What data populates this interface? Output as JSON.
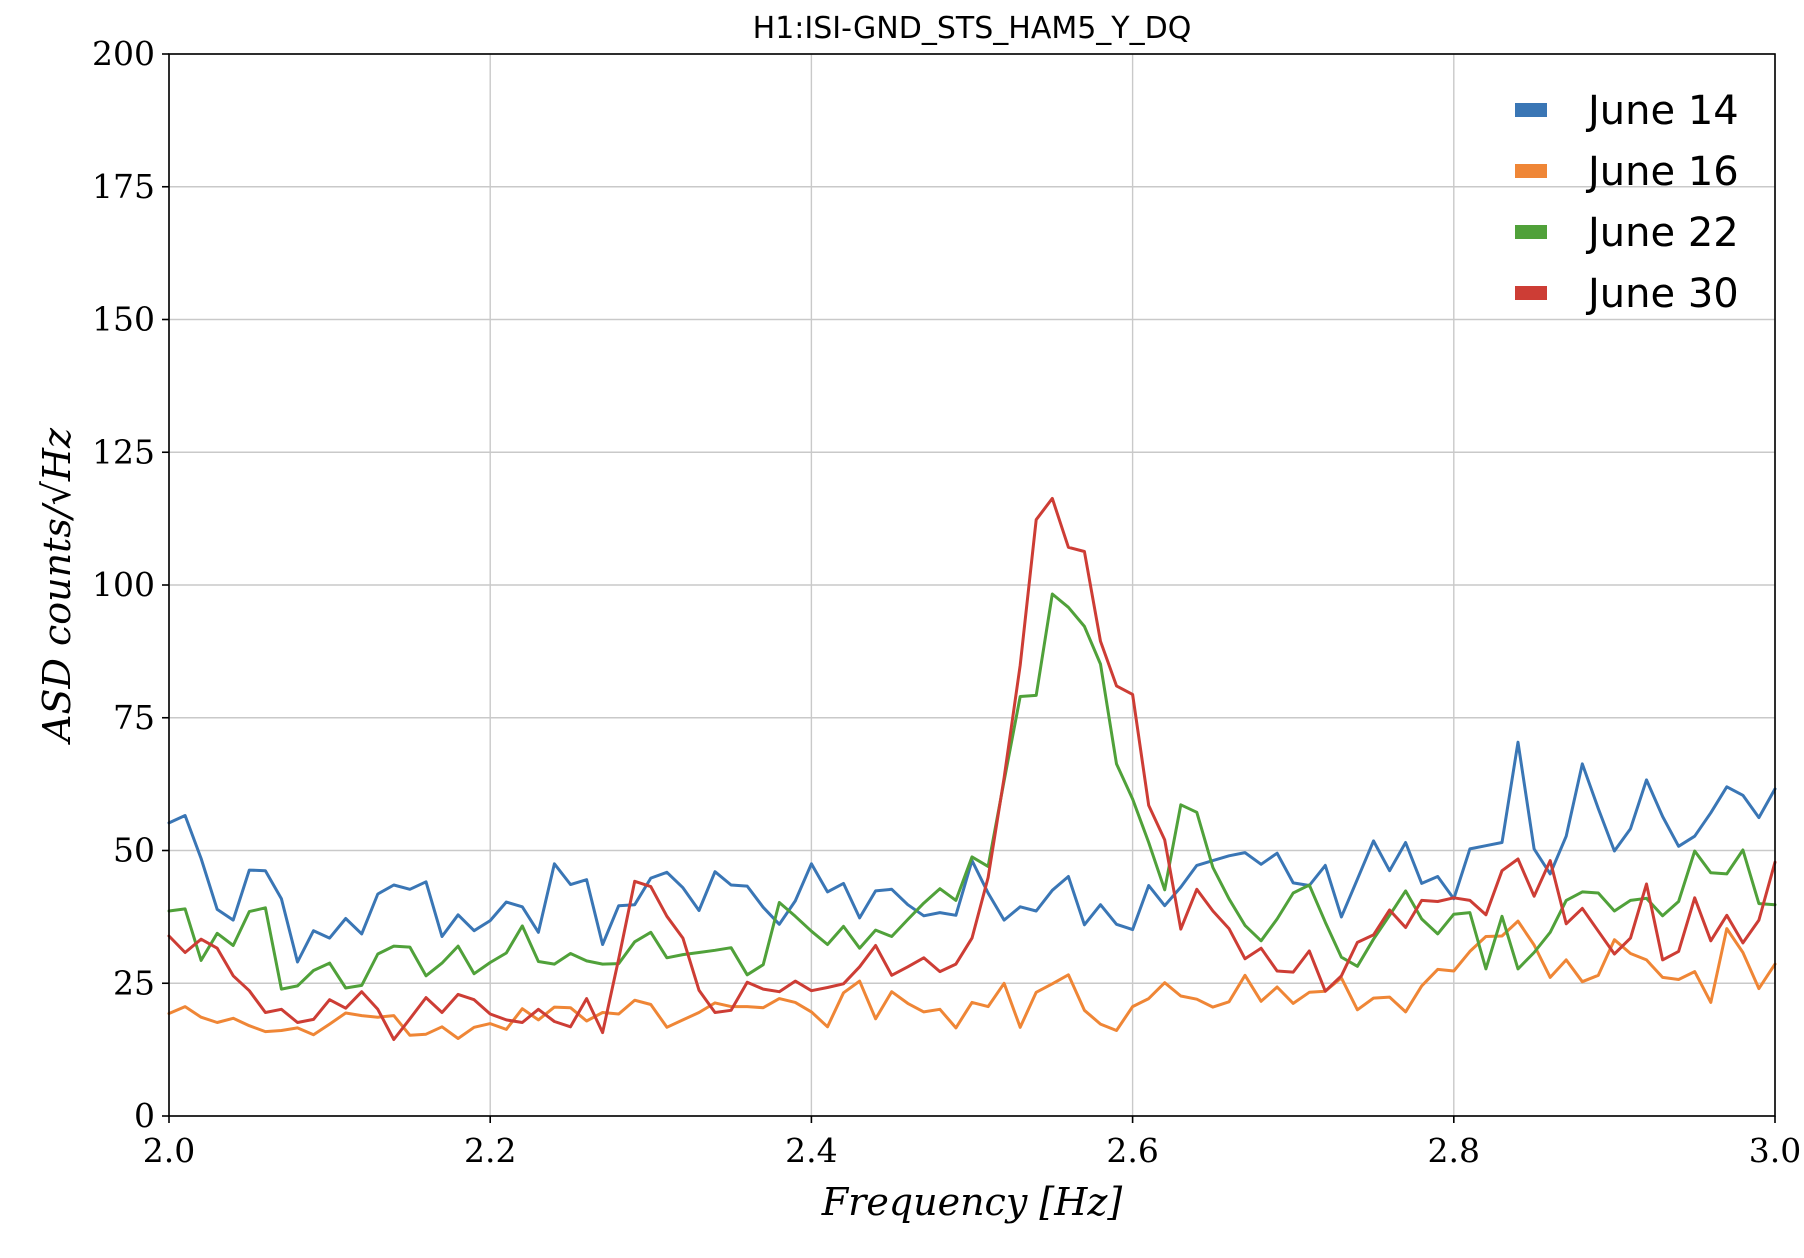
{
  "chart_data": {
    "type": "line",
    "title": "H1:ISI-GND_STS_HAM5_Y_DQ",
    "xlabel": "Frequency [Hz]",
    "ylabel": "ASD counts/√Hz",
    "xlim": [
      2.0,
      3.0
    ],
    "ylim": [
      0,
      200
    ],
    "x_ticks": [
      "2.0",
      "2.2",
      "2.4",
      "2.6",
      "2.8",
      "3.0"
    ],
    "y_ticks": [
      "0",
      "25",
      "50",
      "75",
      "100",
      "125",
      "150",
      "175",
      "200"
    ],
    "grid": true,
    "legend_position": "top-right",
    "x": [
      2.0,
      2.01,
      2.02,
      2.03,
      2.04,
      2.05,
      2.06,
      2.07,
      2.08,
      2.09,
      2.1,
      2.11,
      2.12,
      2.13,
      2.14,
      2.15,
      2.16,
      2.17,
      2.18,
      2.19,
      2.2,
      2.21,
      2.22,
      2.23,
      2.24,
      2.25,
      2.26,
      2.27,
      2.28,
      2.29,
      2.3,
      2.31,
      2.32,
      2.33,
      2.34,
      2.35,
      2.36,
      2.37,
      2.38,
      2.39,
      2.4,
      2.41,
      2.42,
      2.43,
      2.44,
      2.45,
      2.46,
      2.47,
      2.48,
      2.49,
      2.5,
      2.51,
      2.52,
      2.53,
      2.54,
      2.55,
      2.56,
      2.57,
      2.58,
      2.59,
      2.6,
      2.61,
      2.62,
      2.63,
      2.64,
      2.65,
      2.66,
      2.67,
      2.68,
      2.69,
      2.7,
      2.71,
      2.72,
      2.73,
      2.74,
      2.75,
      2.76,
      2.77,
      2.78,
      2.79,
      2.8,
      2.81,
      2.82,
      2.83,
      2.84,
      2.85,
      2.86,
      2.87,
      2.88,
      2.89,
      2.9,
      2.91,
      2.92,
      2.93,
      2.94,
      2.95,
      2.96,
      2.97,
      2.98,
      2.99,
      3.0
    ],
    "series": [
      {
        "name": "June 14",
        "color": "#3a76b5",
        "values": [
          55.2,
          56.6,
          48.5,
          38.9,
          36.9,
          46.3,
          46.2,
          40.9,
          29,
          34.9,
          33.5,
          37.2,
          34.3,
          41.8,
          43.5,
          42.7,
          44.1,
          33.8,
          37.9,
          34.9,
          36.8,
          40.3,
          39.4,
          34.6,
          47.5,
          43.6,
          44.5,
          32.3,
          39.6,
          39.8,
          44.8,
          45.9,
          43,
          38.7,
          46,
          43.5,
          43.3,
          39.3,
          36.1,
          40.5,
          47.5,
          42.2,
          43.8,
          37.3,
          42.4,
          42.7,
          39.8,
          37.7,
          38.3,
          37.8,
          48.1,
          42,
          36.9,
          39.4,
          38.6,
          42.5,
          45.1,
          36,
          39.8,
          36.1,
          35.1,
          43.4,
          39.6,
          43.1,
          47.2,
          48.1,
          49,
          49.6,
          47.4,
          49.5,
          43.9,
          43.4,
          47.2,
          37.5,
          44.6,
          51.8,
          46.2,
          51.5,
          43.8,
          45.1,
          40.9,
          50.3,
          50.9,
          51.5,
          70.4,
          50.3,
          45.6,
          52.7,
          66.3,
          57.9,
          49.9,
          54.1,
          63.3,
          56.4,
          50.8,
          52.7,
          57.1,
          62,
          60.4,
          56.2,
          61.6
        ]
      },
      {
        "name": "June 16",
        "color": "#ef8636",
        "values": [
          19.3,
          20.6,
          18.6,
          17.6,
          18.4,
          17,
          15.9,
          16.1,
          16.6,
          15.3,
          17.3,
          19.4,
          18.9,
          18.6,
          18.9,
          15.2,
          15.4,
          16.8,
          14.6,
          16.7,
          17.4,
          16.3,
          20.2,
          18.1,
          20.5,
          20.4,
          17.9,
          19.5,
          19.2,
          21.8,
          21,
          16.7,
          18.1,
          19.5,
          21.3,
          20.6,
          20.6,
          20.4,
          22.1,
          21.4,
          19.6,
          16.8,
          23.2,
          25.4,
          18.3,
          23.4,
          21.2,
          19.6,
          20.1,
          16.6,
          21.4,
          20.6,
          25,
          16.7,
          23.3,
          24.9,
          26.6,
          19.9,
          17.3,
          16.1,
          20.6,
          22.1,
          25.1,
          22.6,
          22,
          20.5,
          21.5,
          26.5,
          21.6,
          24.3,
          21.2,
          23.3,
          23.5,
          26,
          20,
          22.2,
          22.4,
          19.6,
          24.5,
          27.6,
          27.3,
          31,
          33.8,
          33.9,
          36.7,
          32.2,
          26.1,
          29.4,
          25.3,
          26.5,
          33.2,
          30.6,
          29.4,
          26.1,
          25.7,
          27.2,
          21.4,
          35.3,
          30.8,
          24,
          28.6
        ]
      },
      {
        "name": "June 22",
        "color": "#50a13a",
        "values": [
          38.6,
          39,
          29.3,
          34.4,
          32.1,
          38.5,
          39.2,
          23.9,
          24.5,
          27.4,
          28.8,
          24.1,
          24.6,
          30.5,
          32,
          31.8,
          26.4,
          28.8,
          32,
          26.8,
          28.9,
          30.7,
          35.8,
          29.1,
          28.6,
          30.6,
          29.2,
          28.6,
          28.7,
          32.8,
          34.6,
          29.8,
          30.4,
          30.8,
          31.2,
          31.7,
          26.6,
          28.5,
          40.2,
          37.6,
          34.8,
          32.3,
          35.7,
          31.6,
          35,
          33.8,
          37,
          40.1,
          42.8,
          40.6,
          48.8,
          47,
          63.1,
          79,
          79.2,
          98.3,
          95.8,
          92.2,
          85.1,
          66.3,
          59.7,
          51.5,
          42.6,
          58.6,
          57.2,
          46.8,
          40.9,
          35.9,
          33,
          37.1,
          42,
          43.5,
          36.5,
          29.9,
          28.2,
          33.3,
          37.8,
          42.4,
          37.1,
          34.3,
          38,
          38.3,
          27.7,
          37.6,
          27.7,
          30.8,
          34.6,
          40.6,
          42.2,
          42,
          38.6,
          40.6,
          41,
          37.7,
          40.4,
          49.9,
          45.8,
          45.6,
          50.1,
          40,
          39.8
        ]
      },
      {
        "name": "June 30",
        "color": "#cd3d35",
        "values": [
          33.9,
          30.8,
          33.3,
          31.6,
          26.4,
          23.6,
          19.5,
          20.1,
          17.6,
          18.2,
          21.9,
          20.3,
          23.4,
          20.1,
          14.4,
          18.3,
          22.3,
          19.5,
          22.9,
          21.9,
          19.2,
          18.1,
          17.6,
          20.1,
          17.8,
          16.8,
          22.1,
          15.7,
          29.6,
          44.2,
          43.2,
          37.6,
          33.5,
          23.7,
          19.5,
          19.9,
          25.2,
          23.9,
          23.4,
          25.4,
          23.6,
          24.2,
          24.9,
          28.1,
          32.1,
          26.5,
          28.1,
          29.8,
          27.2,
          28.6,
          33.5,
          44.9,
          63.7,
          84.9,
          112.3,
          116.3,
          107.1,
          106.3,
          89.4,
          81,
          79.4,
          58.5,
          52,
          35.2,
          42.7,
          38.6,
          35.3,
          29.6,
          31.6,
          27.3,
          27.1,
          31.1,
          23.5,
          26.4,
          32.7,
          34.1,
          38.8,
          35.5,
          40.6,
          40.4,
          41.1,
          40.6,
          37.9,
          46.2,
          48.4,
          41.4,
          48.1,
          36.2,
          39.1,
          34.8,
          30.5,
          33.5,
          43.7,
          29.4,
          31,
          41.1,
          33,
          37.8,
          32.6,
          36.9,
          47.8
        ]
      }
    ]
  }
}
